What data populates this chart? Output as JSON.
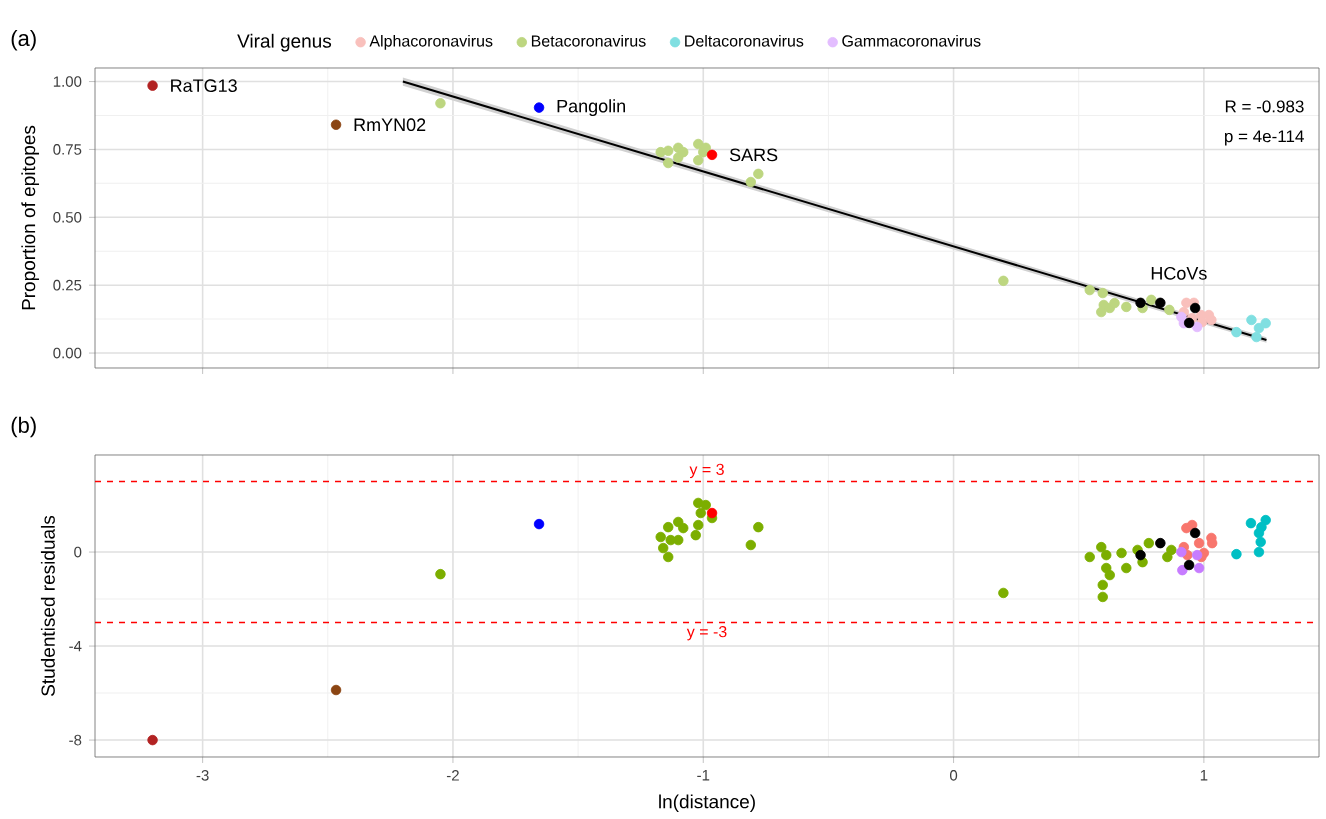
{
  "chart_data": [
    {
      "type": "scatter",
      "title": "(a)",
      "ylabel": "Proportion of epitopes",
      "legend_title": "Viral genus",
      "legend": "top",
      "grid": true,
      "marker": "circle",
      "tick_labels": "y",
      "xlim": [
        -3.43,
        1.46
      ],
      "ylim": [
        -0.055,
        1.05
      ],
      "xticks": [
        -3,
        -2,
        -1,
        0,
        1
      ],
      "yticks": [
        {
          "value": 0,
          "label": "0.00"
        },
        {
          "value": 0.25,
          "label": "0.25"
        },
        {
          "value": 0.5,
          "label": "0.50"
        },
        {
          "value": 0.75,
          "label": "0.75"
        },
        {
          "value": 1,
          "label": "1.00"
        }
      ],
      "series": [
        {
          "name": "Alphacoronavirus",
          "color": "#f9c0bc",
          "x": [
            0.93,
            0.96,
            0.92,
            0.989,
            1.02,
            1.03,
            0.993,
            0.953
          ],
          "values": [
            0.185,
            0.185,
            0.151,
            0.14,
            0.14,
            0.122,
            0.114,
            0.129
          ]
        },
        {
          "name": "Betacoronavirus",
          "color": "#bdd680",
          "x": [
            -2.05,
            -1.17,
            -1.14,
            -1.14,
            -1.1,
            -1.08,
            -1.1,
            -1.02,
            -1.02,
            -1.0,
            -0.99,
            -0.81,
            -0.78,
            0.199,
            0.544,
            0.596,
            0.6,
            0.59,
            0.624,
            0.643,
            0.69,
            0.743,
            0.79,
            0.755,
            0.862
          ],
          "values": [
            0.92,
            0.74,
            0.745,
            0.7,
            0.756,
            0.74,
            0.72,
            0.77,
            0.71,
            0.74,
            0.756,
            0.63,
            0.66,
            0.266,
            0.232,
            0.221,
            0.177,
            0.151,
            0.166,
            0.184,
            0.17,
            null,
            0.196,
            0.166,
            0.159
          ]
        },
        {
          "name": "Deltacoronavirus",
          "color": "#80dfe1",
          "x": [
            1.13,
            1.19,
            1.227,
            1.247,
            1.22,
            1.21
          ],
          "values": [
            0.077,
            0.122,
            null,
            0.11,
            0.092,
            0.059
          ]
        },
        {
          "name": "Gammacoronavirus",
          "color": "#e3bdff",
          "x": [
            0.91,
            0.92,
            0.973
          ],
          "values": [
            0.133,
            0.11,
            0.096
          ]
        },
        {
          "color": "#b22222",
          "x": [
            -3.2
          ],
          "values": [
            0.985
          ]
        },
        {
          "color": "#8b4513",
          "x": [
            -2.467
          ],
          "values": [
            0.841
          ]
        },
        {
          "color": "#0000ff",
          "x": [
            -1.656
          ],
          "values": [
            0.904
          ]
        },
        {
          "color": "#ff0000",
          "x": [
            -0.965
          ],
          "values": [
            0.73
          ]
        },
        {
          "color": "#000000",
          "x": [
            0.747,
            0.826,
            0.965,
            0.941
          ],
          "values": [
            0.185,
            0.185,
            0.166,
            0.111
          ]
        },
        {
          "type": "line",
          "marker": "none",
          "color": "#000000",
          "x": [
            -2.2,
            1.25
          ],
          "values": [
            1.0,
            0.048
          ],
          "lower": [
            0.985,
            0.038
          ],
          "upper": [
            1.015,
            0.058
          ]
        }
      ],
      "annotations": [
        {
          "text": "RaTG13",
          "x": -3.2,
          "y": 0.985
        },
        {
          "text": "RmYN02",
          "x": -2.467,
          "y": 0.841
        },
        {
          "text": "Pangolin",
          "x": -1.656,
          "y": 0.904
        },
        {
          "text": "SARS",
          "x": -0.965,
          "y": 0.73
        },
        {
          "text": "HCoVs",
          "x": 0.9,
          "y": 0.2
        },
        "R = -0.983",
        "p = 4e-114"
      ]
    },
    {
      "type": "scatter",
      "title": "(b)",
      "xlabel": "ln(distance)",
      "ylabel": "Studentised residuals",
      "grid": true,
      "marker": "circle",
      "xlim": [
        -3.43,
        1.46
      ],
      "ylim": [
        -8.72,
        4.13
      ],
      "xticks": [
        -3,
        -2,
        -1,
        0,
        1
      ],
      "yticks": [
        -8,
        -4,
        0
      ],
      "series": [
        {
          "color": "#f8766d",
          "x": [
            0.93,
            0.953,
            0.92,
            0.981,
            1.03,
            1.033,
            1.0,
            0.934,
            0.99
          ],
          "values": [
            1.02,
            1.15,
            0.21,
            0.38,
            0.6,
            0.38,
            -0.04,
            -0.13,
            -0.21
          ]
        },
        {
          "color": "#7cae00",
          "x": [
            -2.05,
            0.199,
            -1.02,
            -0.99,
            -1.01,
            -0.965,
            -1.02,
            -1.03,
            -1.1,
            -1.14,
            -1.08,
            -1.17,
            -1.13,
            -1.1,
            -1.16,
            -1.14,
            -0.81,
            -0.78,
            0.544,
            0.59,
            0.61,
            0.61,
            0.596,
            0.596,
            0.624,
            0.671,
            0.69,
            0.735,
            0.78,
            0.755,
            0.854,
            0.87
          ],
          "values": [
            -0.94,
            -1.74,
            2.09,
            2.0,
            1.66,
            1.45,
            1.15,
            0.72,
            1.28,
            1.06,
            1.02,
            0.64,
            0.51,
            0.51,
            0.17,
            -0.21,
            0.3,
            1.06,
            -0.21,
            0.21,
            -0.13,
            -0.68,
            -1.4,
            -1.91,
            -0.98,
            -0.04,
            -0.68,
            0.09,
            0.38,
            -0.43,
            -0.21,
            0.09
          ]
        },
        {
          "color": "#00bfc4",
          "x": [
            1.13,
            1.188,
            1.247,
            1.22,
            1.227,
            1.22,
            1.23
          ],
          "values": [
            -0.09,
            1.23,
            1.36,
            0.81,
            0.43,
            0.0,
            1.06
          ]
        },
        {
          "color": "#c77cff",
          "x": [
            0.91,
            0.973,
            0.914,
            0.981
          ],
          "values": [
            0.0,
            -0.13,
            -0.77,
            -0.68
          ]
        },
        {
          "color": "#b22222",
          "x": [
            -3.2
          ],
          "values": [
            -8.0
          ]
        },
        {
          "color": "#8b4513",
          "x": [
            -2.467
          ],
          "values": [
            -5.87
          ]
        },
        {
          "color": "#0000ff",
          "x": [
            -1.656
          ],
          "values": [
            1.19
          ]
        },
        {
          "color": "#ff0000",
          "x": [
            -0.965
          ],
          "values": [
            1.66
          ]
        },
        {
          "color": "#000000",
          "x": [
            0.747,
            0.826,
            0.965,
            0.941
          ],
          "values": [
            -0.13,
            0.38,
            0.81,
            -0.55
          ]
        }
      ],
      "ref_lines": [
        {
          "axis": "y",
          "value": 3,
          "label": "y = 3",
          "color": "#ff0000",
          "line_style": "dashed"
        },
        {
          "axis": "y",
          "value": -3,
          "label": "y = -3",
          "color": "#ff0000",
          "line_style": "dashed"
        }
      ]
    }
  ]
}
